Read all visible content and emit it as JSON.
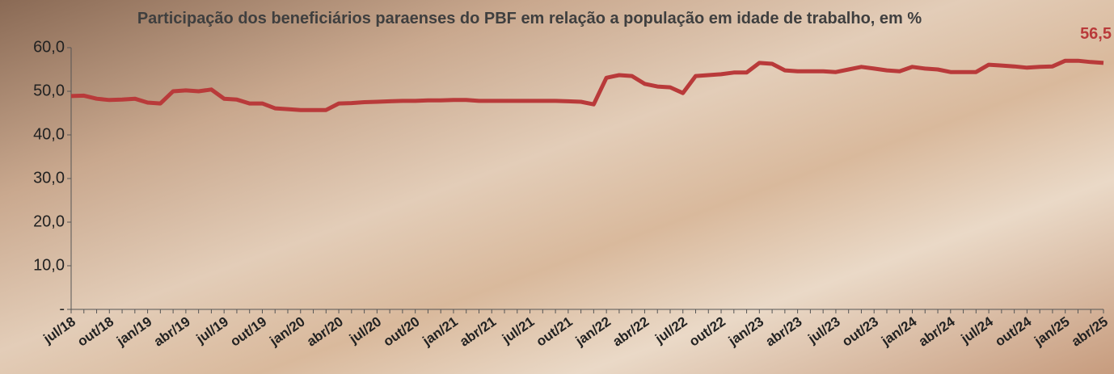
{
  "chart_data": {
    "type": "line",
    "title": "Participação dos beneficiários paraenses do PBF em relação a população em idade de trabalho, em %",
    "categories": [
      "jul/18",
      null,
      null,
      "out/18",
      null,
      null,
      "jan/19",
      null,
      null,
      "abr/19",
      null,
      null,
      "jul/19",
      null,
      null,
      "out/19",
      null,
      null,
      "jan/20",
      null,
      null,
      "abr/20",
      null,
      null,
      "jul/20",
      null,
      null,
      "out/20",
      null,
      null,
      "jan/21",
      null,
      null,
      "abr/21",
      null,
      null,
      "jul/21",
      null,
      null,
      "out/21",
      null,
      null,
      "jan/22",
      null,
      null,
      "abr/22",
      null,
      null,
      "jul/22",
      null,
      null,
      "out/22",
      null,
      null,
      "jan/23",
      null,
      null,
      "abr/23",
      null,
      null,
      "jul/23",
      null,
      null,
      "out/23",
      null,
      null,
      "jan/24",
      null,
      null,
      "abr/24",
      null,
      null,
      "jul/24",
      null,
      null,
      "out/24",
      null,
      null,
      "jan/25",
      null,
      null,
      "abr/25"
    ],
    "series": [
      {
        "name": null,
        "color": "#b93a3a",
        "values": [
          48.9,
          49.0,
          48.3,
          48.0,
          48.1,
          48.3,
          47.4,
          47.2,
          50.0,
          50.2,
          50.0,
          50.4,
          48.3,
          48.1,
          47.2,
          47.2,
          46.1,
          45.9,
          45.7,
          45.7,
          45.7,
          47.2,
          47.3,
          47.5,
          47.6,
          47.7,
          47.8,
          47.8,
          47.9,
          47.9,
          48.0,
          48.0,
          47.8,
          47.8,
          47.8,
          47.8,
          47.8,
          47.8,
          47.8,
          47.7,
          47.6,
          47.0,
          53.1,
          53.7,
          53.5,
          51.7,
          51.1,
          50.9,
          49.6,
          53.5,
          53.7,
          53.9,
          54.3,
          54.3,
          56.5,
          56.3,
          54.8,
          54.6,
          54.6,
          54.6,
          54.4,
          55.0,
          55.6,
          55.2,
          54.8,
          54.6,
          55.6,
          55.2,
          55.0,
          54.4,
          54.4,
          54.4,
          56.1,
          55.9,
          55.7,
          55.4,
          55.6,
          55.7,
          57.0,
          57.0,
          56.7,
          56.5
        ],
        "value_labels": [
          null,
          null,
          null,
          null,
          null,
          null,
          null,
          null,
          null,
          null,
          null,
          null,
          null,
          null,
          null,
          null,
          null,
          null,
          null,
          null,
          null,
          null,
          null,
          null,
          null,
          null,
          null,
          null,
          null,
          null,
          null,
          null,
          null,
          null,
          null,
          null,
          null,
          null,
          null,
          null,
          null,
          null,
          null,
          null,
          null,
          null,
          null,
          null,
          null,
          null,
          null,
          null,
          null,
          null,
          null,
          null,
          null,
          null,
          null,
          null,
          null,
          null,
          null,
          null,
          null,
          null,
          null,
          null,
          null,
          null,
          null,
          null,
          null,
          null,
          null,
          null,
          null,
          null,
          null,
          null,
          null,
          "56,5"
        ]
      }
    ],
    "ylim": [
      0,
      60
    ],
    "yticks": [
      {
        "value": 0,
        "label": "-"
      },
      {
        "value": 10,
        "label": "10,0"
      },
      {
        "value": 20,
        "label": "20,0"
      },
      {
        "value": 30,
        "label": "30,0"
      },
      {
        "value": 40,
        "label": "40,0"
      },
      {
        "value": 50,
        "label": "50,0"
      },
      {
        "value": 60,
        "label": "60,0"
      }
    ],
    "grid": false
  }
}
